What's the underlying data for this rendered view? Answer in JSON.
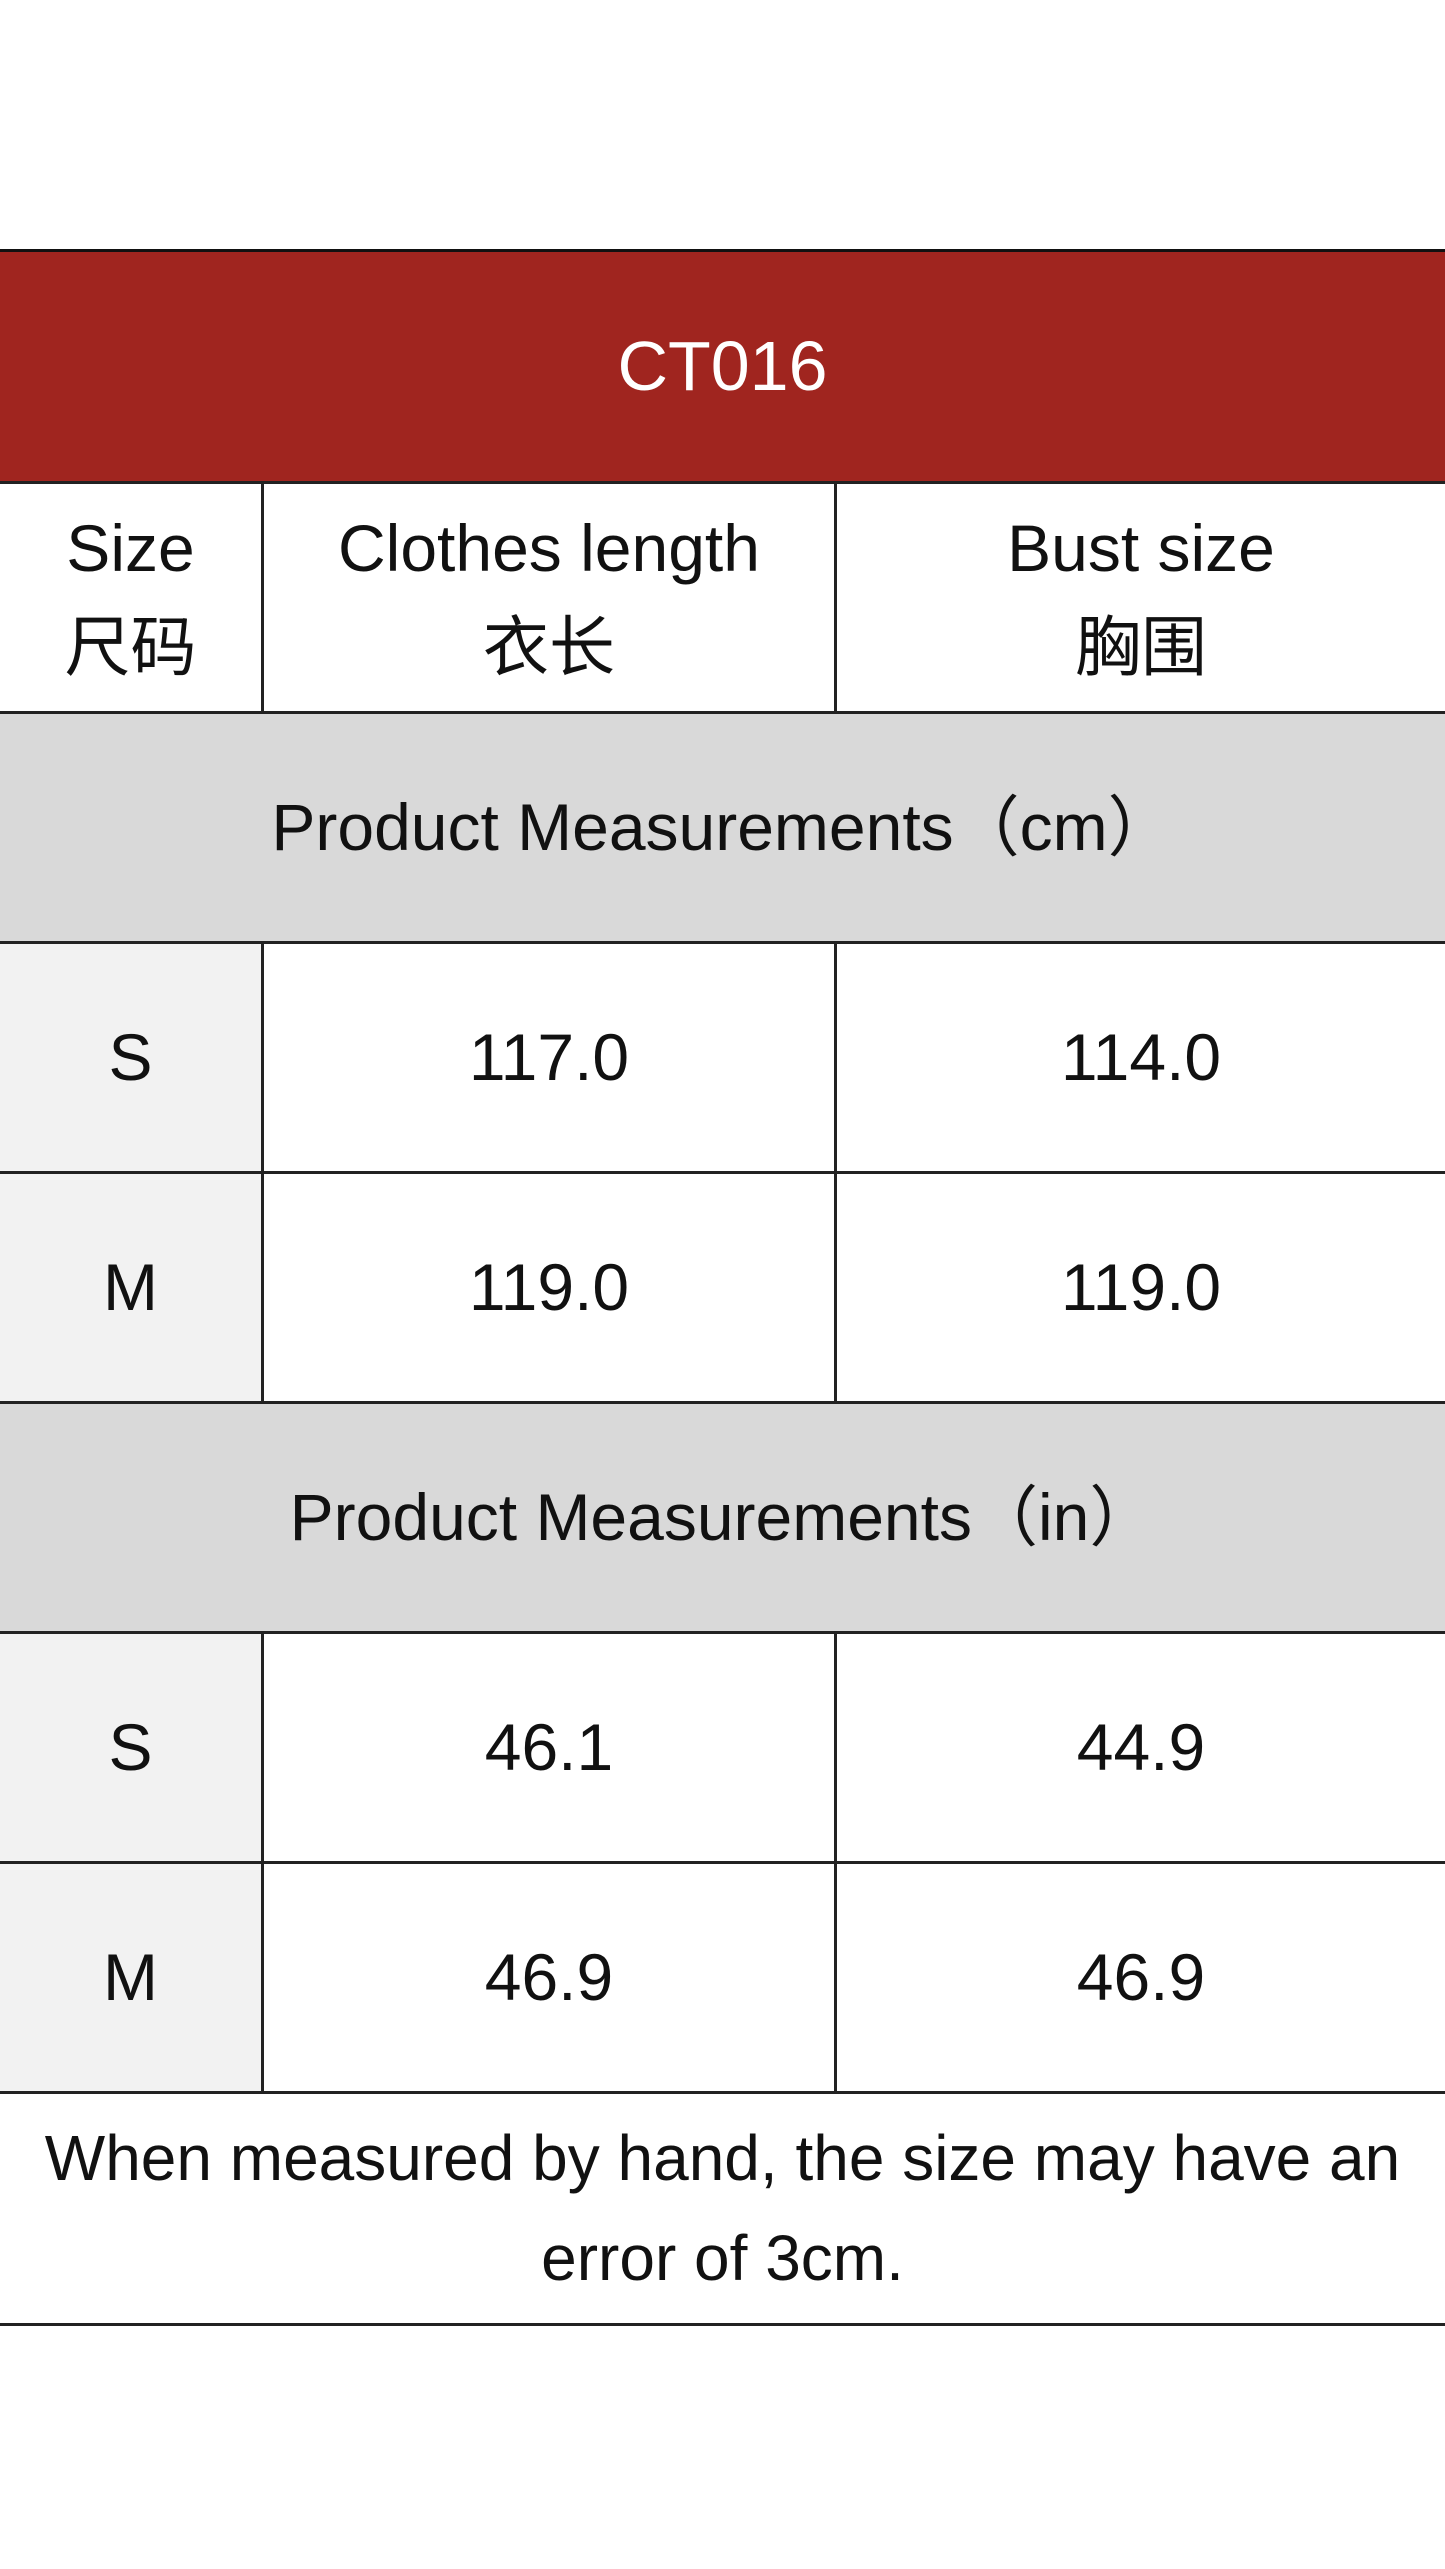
{
  "title": "CT016",
  "columns": [
    {
      "en": "Size",
      "zh": "尺码"
    },
    {
      "en": "Clothes length",
      "zh": "衣长"
    },
    {
      "en": "Bust size",
      "zh": "胸围"
    }
  ],
  "sections": [
    {
      "label": "Product Measurements（cm）",
      "rows": [
        {
          "size": "S",
          "length": "117.0",
          "bust": "114.0"
        },
        {
          "size": "M",
          "length": "119.0",
          "bust": "119.0"
        }
      ]
    },
    {
      "label": "Product Measurements（in）",
      "rows": [
        {
          "size": "S",
          "length": "46.1",
          "bust": "44.9"
        },
        {
          "size": "M",
          "length": "46.9",
          "bust": "46.9"
        }
      ]
    }
  ],
  "footnote": "When measured by hand, the size may have an error of 3cm.",
  "colors": {
    "header_bg": "#a0251f",
    "band_bg": "#d9d9d9",
    "size_col_bg": "#f2f2f2"
  }
}
